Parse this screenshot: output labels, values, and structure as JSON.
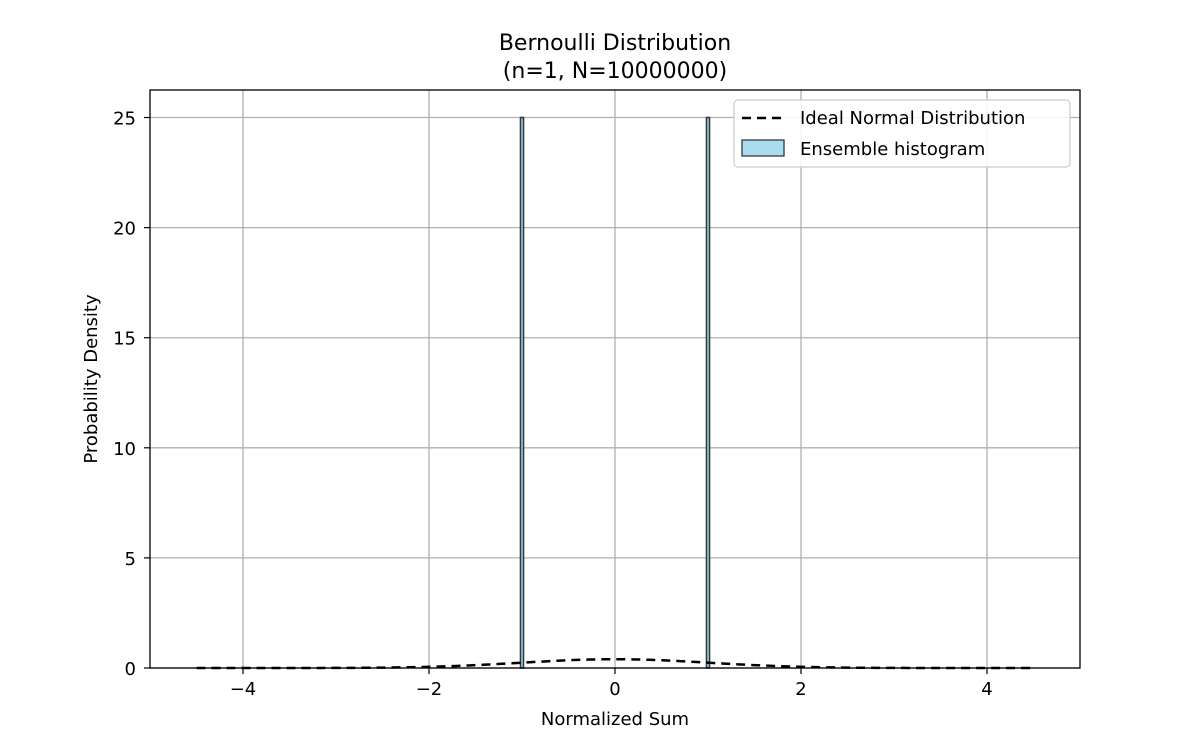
{
  "chart_data": {
    "type": "histogram",
    "title_line1": "Bernoulli Distribution",
    "title_line2": "(n=1, N=10000000)",
    "xlabel": "Normalized Sum",
    "ylabel": "Probability Density",
    "xlim": [
      -5,
      5
    ],
    "ylim": [
      0,
      26.25
    ],
    "xticks": [
      -4,
      -2,
      0,
      2,
      4
    ],
    "yticks": [
      0,
      5,
      10,
      15,
      20,
      25
    ],
    "grid": true,
    "legend_position": "top-right",
    "series": [
      {
        "name": "Ideal Normal Distribution",
        "kind": "line",
        "style": "dashed",
        "color": "#000000",
        "x_range": [
          -4.5,
          4.5
        ]
      },
      {
        "name": "Ensemble histogram",
        "kind": "bar",
        "color": "#a8dcee",
        "edge_color": "#2f3b40",
        "bars": [
          {
            "x": -1,
            "height": 25
          },
          {
            "x": 1,
            "height": 25
          }
        ]
      }
    ]
  }
}
